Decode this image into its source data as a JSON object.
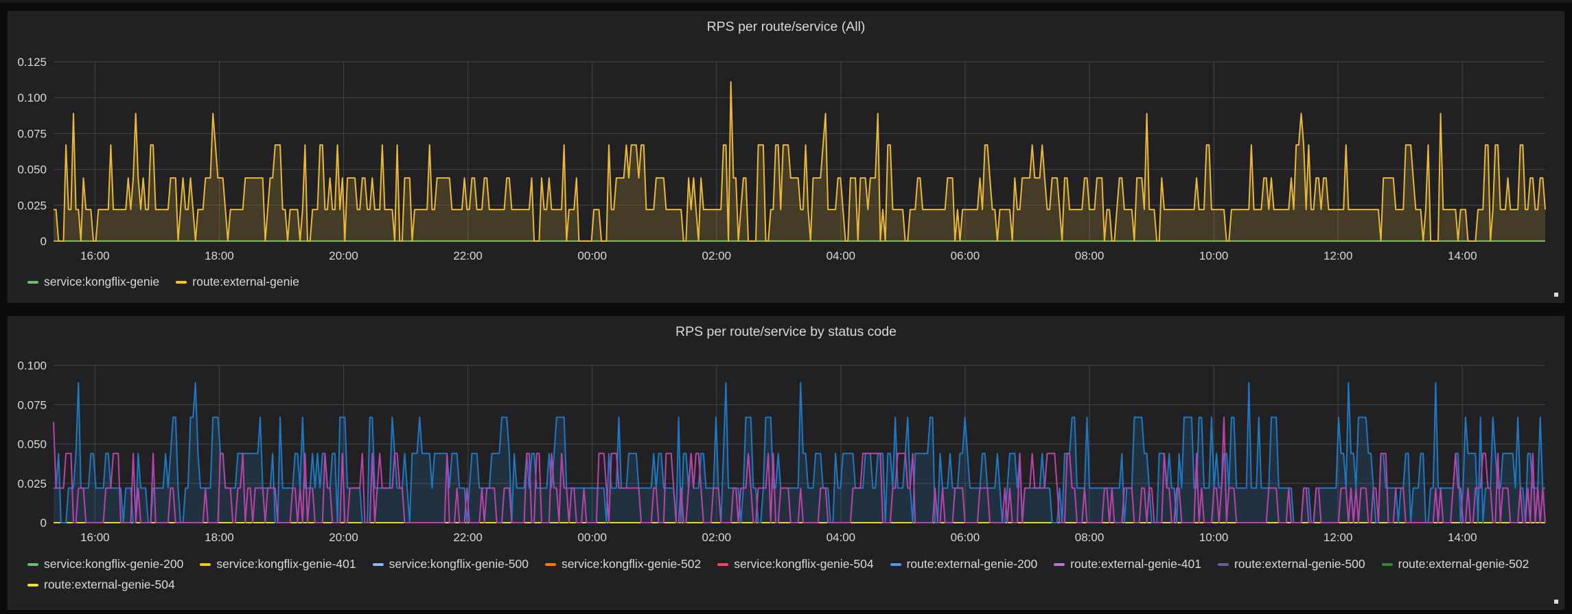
{
  "panels": [
    {
      "title": "RPS per route/service (All)",
      "chart_data": {
        "type": "area",
        "title": "RPS per route/service (All)",
        "xlabel": "",
        "ylabel": "",
        "ylim": [
          0,
          0.125
        ],
        "yticks": [
          "0",
          "0.025",
          "0.050",
          "0.075",
          "0.100",
          "0.125"
        ],
        "xlim": [
          "15:20",
          "15:20 (+1 day)"
        ],
        "xticks": [
          "16:00",
          "18:00",
          "20:00",
          "22:00",
          "00:00",
          "02:00",
          "04:00",
          "06:00",
          "08:00",
          "10:00",
          "12:00",
          "14:00"
        ],
        "grid": true,
        "legend_position": "bottom-left",
        "series": [
          {
            "name": "service:kongflix-genie",
            "color": "#73bf69",
            "note": "all zero"
          },
          {
            "name": "route:external-genie",
            "color": "#f2cc0c",
            "approx_range": [
              0,
              0.111
            ],
            "peaks": [
              {
                "x": "02:15",
                "y": 0.111
              },
              {
                "x": "15:40",
                "y": 0.089
              },
              {
                "x": "16:40",
                "y": 0.089
              },
              {
                "x": "17:55",
                "y": 0.089
              },
              {
                "x": "03:45",
                "y": 0.089
              },
              {
                "x": "04:35",
                "y": 0.089
              },
              {
                "x": "08:55",
                "y": 0.089
              },
              {
                "x": "11:25",
                "y": 0.089
              },
              {
                "x": "13:40",
                "y": 0.089
              }
            ],
            "typical_levels": [
              0,
              0.022,
              0.044,
              0.067
            ]
          }
        ]
      },
      "legend": [
        {
          "label": "service:kongflix-genie",
          "color": "#73bf69"
        },
        {
          "label": "route:external-genie",
          "color": "#f2cc0c"
        }
      ]
    },
    {
      "title": "RPS per route/service by status code",
      "chart_data": {
        "type": "line",
        "title": "RPS per route/service by status code",
        "xlabel": "",
        "ylabel": "",
        "ylim": [
          0,
          0.1
        ],
        "yticks": [
          "0",
          "0.025",
          "0.050",
          "0.075",
          "0.100"
        ],
        "xlim": [
          "15:20",
          "15:20 (+1 day)"
        ],
        "xticks": [
          "16:00",
          "18:00",
          "20:00",
          "22:00",
          "00:00",
          "02:00",
          "04:00",
          "06:00",
          "08:00",
          "10:00",
          "12:00",
          "14:00"
        ],
        "grid": true,
        "legend_position": "bottom-left",
        "series": [
          {
            "name": "service:kongflix-genie-200",
            "color": "#73bf69"
          },
          {
            "name": "service:kongflix-genie-401",
            "color": "#f2cc0c"
          },
          {
            "name": "service:kongflix-genie-500",
            "color": "#8ab8ff"
          },
          {
            "name": "service:kongflix-genie-502",
            "color": "#ff780a"
          },
          {
            "name": "service:kongflix-genie-504",
            "color": "#f2495c"
          },
          {
            "name": "route:external-genie-200",
            "color": "#5794f2",
            "approx_range": [
              0,
              0.089
            ],
            "typical_levels": [
              0,
              0.022,
              0.044,
              0.067,
              0.089
            ]
          },
          {
            "name": "route:external-genie-401",
            "color": "#b877d9",
            "approx_range": [
              0,
              0.067
            ],
            "typical_levels": [
              0,
              0.022,
              0.044
            ]
          },
          {
            "name": "route:external-genie-500",
            "color": "#705da0"
          },
          {
            "name": "route:external-genie-502",
            "color": "#37872d"
          },
          {
            "name": "route:external-genie-504",
            "color": "#fade2a"
          }
        ]
      },
      "legend": [
        {
          "label": "service:kongflix-genie-200",
          "color": "#73bf69"
        },
        {
          "label": "service:kongflix-genie-401",
          "color": "#f2cc0c"
        },
        {
          "label": "service:kongflix-genie-500",
          "color": "#8ab8ff"
        },
        {
          "label": "service:kongflix-genie-502",
          "color": "#ff780a"
        },
        {
          "label": "service:kongflix-genie-504",
          "color": "#f2495c"
        },
        {
          "label": "route:external-genie-200",
          "color": "#5794f2"
        },
        {
          "label": "route:external-genie-401",
          "color": "#b877d9"
        },
        {
          "label": "route:external-genie-500",
          "color": "#705da0"
        },
        {
          "label": "route:external-genie-502",
          "color": "#37872d"
        },
        {
          "label": "route:external-genie-504",
          "color": "#fade2a"
        }
      ]
    }
  ],
  "colors": {
    "grid": "#464648",
    "tick_text": "#d8d9da",
    "panel_bg": "#212124",
    "page_bg": "#0b0c0e",
    "yellow_line": "#eab839",
    "blue_line": "#1f78c1",
    "pink_line": "#ba43a9"
  }
}
